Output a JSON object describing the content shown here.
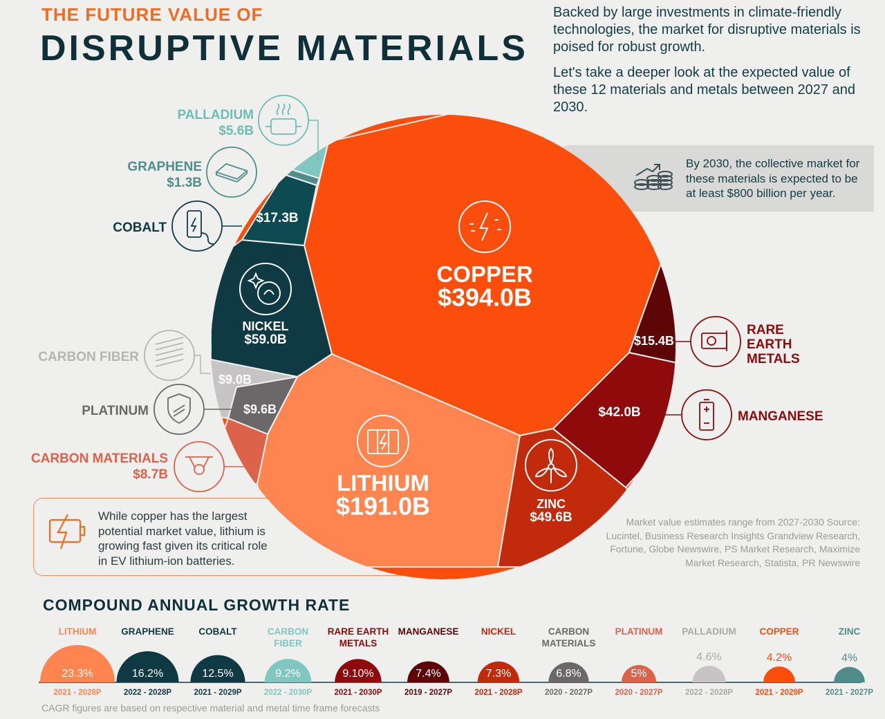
{
  "header": {
    "kicker": "THE FUTURE VALUE OF",
    "title": "DISRUPTIVE MATERIALS",
    "intro1": "Backed by large investments in climate-friendly technologies, the market for disruptive materials is poised for robust growth.",
    "intro2": "Let's take a deeper look at the expected value of these 12 materials and metals between 2027 and 2030."
  },
  "callout": "By 2030, the collective market for these materials is expected to be at least $800 billion per year.",
  "note": "While copper has the largest potential market value, lithium is growing fast given its critical role in EV lithium-ion batteries.",
  "source": "Market value estimates range from 2027-2030 Source: Lucintel, Business Research Insights Grandview Research, Fortune, Globe Newswire, PS Market Research, Maximize Market Research, Statista, PR Newswire",
  "chart_data": [
    {
      "type": "voronoi-treemap",
      "unit": "$ billions",
      "items": [
        {
          "name": "COPPER",
          "value": 394.0,
          "label": "$394.0B",
          "color": "#fb4d0b"
        },
        {
          "name": "LITHIUM",
          "value": 191.0,
          "label": "$191.0B",
          "color": "#fe8450"
        },
        {
          "name": "NICKEL",
          "value": 59.0,
          "label": "$59.0B",
          "color": "#0f3a43"
        },
        {
          "name": "ZINC",
          "value": 49.6,
          "label": "$49.6B",
          "color": "#c22a0c"
        },
        {
          "name": "MANGANESE",
          "value": 42.0,
          "label": "$42.0B",
          "color": "#8e0a0b"
        },
        {
          "name": "COBALT",
          "value": 17.3,
          "label": "$17.3B",
          "color": "#0e4a52"
        },
        {
          "name": "RARE EARTH METALS",
          "value": 15.4,
          "label": "$15.4B",
          "color": "#5d0507"
        },
        {
          "name": "PLATINUM",
          "value": 9.6,
          "label": "$9.6B",
          "color": "#6a6869"
        },
        {
          "name": "CARBON FIBER",
          "value": 9.0,
          "label": "$9.0B",
          "color": "#c6c4c4"
        },
        {
          "name": "CARBON MATERIALS",
          "value": 8.7,
          "label": "$8.7B",
          "color": "#dc624a"
        },
        {
          "name": "PALLADIUM",
          "value": 5.6,
          "label": "$5.6B",
          "color": "#7fc7c0"
        },
        {
          "name": "GRAPHENE",
          "value": 1.3,
          "label": "$1.3B",
          "color": "#4e8d8a"
        }
      ]
    },
    {
      "type": "bar",
      "title": "COMPOUND ANNUAL GROWTH RATE",
      "footnote": "CAGR figures are based on respective material and metal time frame forecasts",
      "unit": "%",
      "items": [
        {
          "name": "LITHIUM",
          "value": 23.3,
          "label": "23.3%",
          "period": "2021 - 2028P",
          "color": "#fe8450"
        },
        {
          "name": "GRAPHENE",
          "value": 16.2,
          "label": "16.2%",
          "period": "2022 - 2028P",
          "color": "#0f3a43"
        },
        {
          "name": "COBALT",
          "value": 12.5,
          "label": "12.5%",
          "period": "2021 - 2029P",
          "color": "#0f3a43"
        },
        {
          "name": "CARBON FIBER",
          "value": 9.2,
          "label": "9.2%",
          "period": "2022 - 2030P",
          "color": "#7fc7c0"
        },
        {
          "name": "RARE EARTH METALS",
          "value": 9.1,
          "label": "9.10%",
          "period": "2021 - 2030P",
          "color": "#8e0a0b"
        },
        {
          "name": "MANGANESE",
          "value": 7.4,
          "label": "7.4%",
          "period": "2019 - 2027P",
          "color": "#5d0507"
        },
        {
          "name": "NICKEL",
          "value": 7.3,
          "label": "7.3%",
          "period": "2021 - 2028P",
          "color": "#c22a0c"
        },
        {
          "name": "CARBON MATERIALS",
          "value": 6.8,
          "label": "6.8%",
          "period": "2020 - 2027P",
          "color": "#6a6869"
        },
        {
          "name": "PLATINUM",
          "value": 5.0,
          "label": "5%",
          "period": "2020 - 2027P",
          "color": "#dc624a"
        },
        {
          "name": "PALLADIUM",
          "value": 4.6,
          "label": "4.6%",
          "period": "2022 - 2028P",
          "color": "#c6c4c4"
        },
        {
          "name": "COPPER",
          "value": 4.2,
          "label": "4.2%",
          "period": "2021 - 2029P",
          "color": "#fb4d0b"
        },
        {
          "name": "ZINC",
          "value": 4.0,
          "label": "4%",
          "period": "2021 - 2027P",
          "color": "#4e8d8a"
        }
      ]
    }
  ]
}
